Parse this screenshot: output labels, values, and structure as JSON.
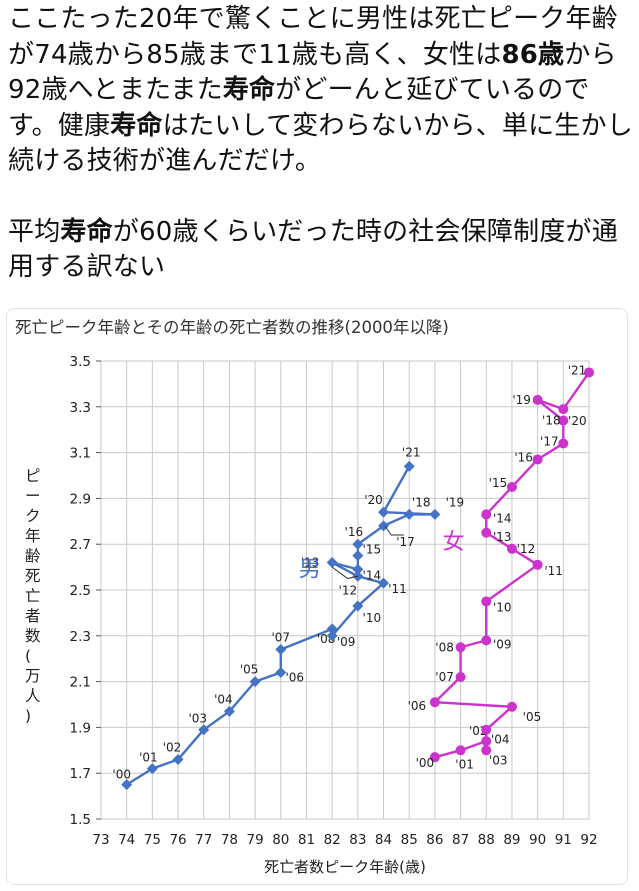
{
  "post": {
    "paragraph1": [
      {
        "t": "ここたった20年で驚くことに男性は死亡ピーク年齢が74歳から85歳まで11歳も高く、女性は",
        "b": false
      },
      {
        "t": "86歳",
        "b": true
      },
      {
        "t": "から92歳へとまたまた",
        "b": false
      },
      {
        "t": "寿命",
        "b": true
      },
      {
        "t": "がどーんと延びているのです。健康",
        "b": false
      },
      {
        "t": "寿命",
        "b": true
      },
      {
        "t": "はたいして変わらないから、単に生かし続ける技術が進んだだけ。",
        "b": false
      }
    ],
    "paragraph2": [
      {
        "t": "平均",
        "b": false
      },
      {
        "t": "寿命",
        "b": true
      },
      {
        "t": "が60歳くらいだった時の社会保障制度が通用する訳ない",
        "b": false
      }
    ]
  },
  "colors": {
    "male": "#4472c4",
    "female": "#cc33cc",
    "grid": "#c8c8c8"
  },
  "chart_data": {
    "type": "line",
    "title": "死亡ピーク年齢とその年齢の死亡者数の推移(2000年以降)",
    "xlabel": "死亡者数ピーク年齢(歳)",
    "ylabel": "ピーク年齢死亡者数(万人)",
    "xlim": [
      73,
      92
    ],
    "ylim": [
      1.5,
      3.5
    ],
    "xticks": [
      "73",
      "74",
      "75",
      "76",
      "77",
      "78",
      "79",
      "80",
      "81",
      "82",
      "83",
      "84",
      "85",
      "86",
      "87",
      "88",
      "89",
      "90",
      "91",
      "92"
    ],
    "yticks": [
      "1.5",
      "1.7",
      "1.9",
      "2.1",
      "2.3",
      "2.5",
      "2.7",
      "2.9",
      "3.1",
      "3.3",
      "3.5"
    ],
    "grid": true,
    "series": [
      {
        "name": "男",
        "points": [
          {
            "year": "'00",
            "x": 74,
            "y": 1.65
          },
          {
            "year": "'01",
            "x": 75,
            "y": 1.72
          },
          {
            "year": "'02",
            "x": 76,
            "y": 1.76
          },
          {
            "year": "'03",
            "x": 77,
            "y": 1.89
          },
          {
            "year": "'04",
            "x": 78,
            "y": 1.97
          },
          {
            "year": "'05",
            "x": 79,
            "y": 2.1
          },
          {
            "year": "'06",
            "x": 80,
            "y": 2.14
          },
          {
            "year": "'07",
            "x": 80,
            "y": 2.24
          },
          {
            "year": "'08",
            "x": 82,
            "y": 2.33
          },
          {
            "year": "'09",
            "x": 82,
            "y": 2.3
          },
          {
            "year": "'10",
            "x": 83,
            "y": 2.43
          },
          {
            "year": "'11",
            "x": 84,
            "y": 2.53
          },
          {
            "year": "'12",
            "x": 83,
            "y": 2.56
          },
          {
            "year": "'13",
            "x": 82,
            "y": 2.62
          },
          {
            "year": "'14",
            "x": 83,
            "y": 2.59
          },
          {
            "year": "'15",
            "x": 83,
            "y": 2.65
          },
          {
            "year": "'16",
            "x": 83,
            "y": 2.7
          },
          {
            "year": "'17",
            "x": 84,
            "y": 2.78
          },
          {
            "year": "'18",
            "x": 85,
            "y": 2.83
          },
          {
            "year": "'19",
            "x": 86,
            "y": 2.83
          },
          {
            "year": "'20",
            "x": 84,
            "y": 2.84
          },
          {
            "year": "'21",
            "x": 85,
            "y": 3.04
          }
        ]
      },
      {
        "name": "女",
        "points": [
          {
            "year": "'00",
            "x": 86,
            "y": 1.77
          },
          {
            "year": "'01",
            "x": 87,
            "y": 1.8
          },
          {
            "year": "'02",
            "x": 88,
            "y": 1.84
          },
          {
            "year": "'03",
            "x": 88,
            "y": 1.8
          },
          {
            "year": "'04",
            "x": 88,
            "y": 1.89
          },
          {
            "year": "'05",
            "x": 89,
            "y": 1.99
          },
          {
            "year": "'06",
            "x": 86,
            "y": 2.01
          },
          {
            "year": "'07",
            "x": 87,
            "y": 2.12
          },
          {
            "year": "'08",
            "x": 87,
            "y": 2.25
          },
          {
            "year": "'09",
            "x": 88,
            "y": 2.28
          },
          {
            "year": "'10",
            "x": 88,
            "y": 2.45
          },
          {
            "year": "'11",
            "x": 90,
            "y": 2.61
          },
          {
            "year": "'12",
            "x": 89,
            "y": 2.68
          },
          {
            "year": "'13",
            "x": 88,
            "y": 2.75
          },
          {
            "year": "'14",
            "x": 88,
            "y": 2.83
          },
          {
            "year": "'15",
            "x": 89,
            "y": 2.95
          },
          {
            "year": "'16",
            "x": 90,
            "y": 3.07
          },
          {
            "year": "'17",
            "x": 91,
            "y": 3.14
          },
          {
            "year": "'18",
            "x": 91,
            "y": 3.24
          },
          {
            "year": "'19",
            "x": 90,
            "y": 3.33
          },
          {
            "year": "'20",
            "x": 91,
            "y": 3.29
          },
          {
            "year": "'21",
            "x": 92,
            "y": 3.45
          }
        ]
      }
    ]
  }
}
